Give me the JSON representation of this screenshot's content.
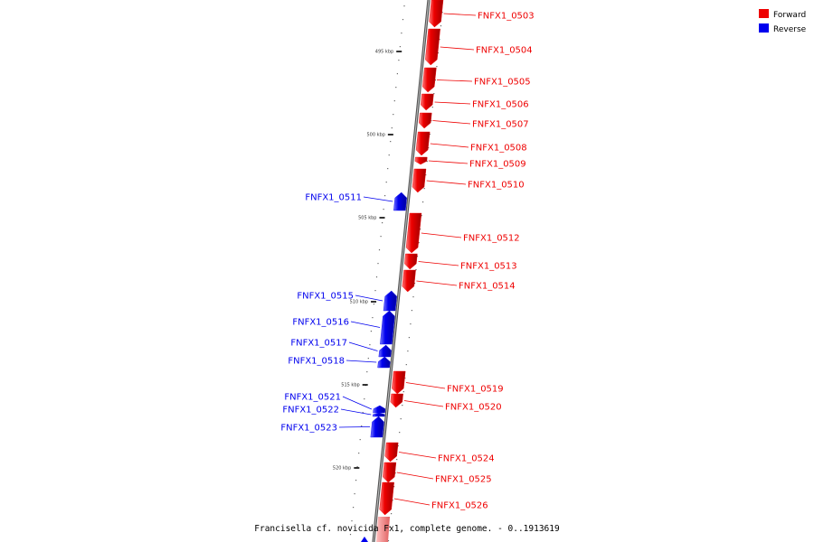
{
  "caption": "Francisella cf. novicida Fx1, complete genome. - 0..1913619",
  "colors": {
    "forward": "#ee0000",
    "reverse": "#0000ee",
    "backbone": "#777777"
  },
  "legend": [
    {
      "key": "forward",
      "label": "Forward",
      "color": "#ee0000"
    },
    {
      "key": "reverse",
      "label": "Reverse",
      "color": "#0000ee"
    }
  ],
  "scale_ticks": [
    {
      "label": "495 kbp"
    },
    {
      "label": "500 kbp"
    },
    {
      "label": "505 kbp"
    },
    {
      "label": "510 kbp"
    },
    {
      "label": "515 kbp"
    },
    {
      "label": "520 kbp"
    }
  ],
  "genes": [
    {
      "name": "FNFX1_0503",
      "strand": "forward"
    },
    {
      "name": "FNFX1_0504",
      "strand": "forward"
    },
    {
      "name": "FNFX1_0505",
      "strand": "forward"
    },
    {
      "name": "FNFX1_0506",
      "strand": "forward"
    },
    {
      "name": "FNFX1_0507",
      "strand": "forward"
    },
    {
      "name": "FNFX1_0508",
      "strand": "forward"
    },
    {
      "name": "FNFX1_0509",
      "strand": "forward"
    },
    {
      "name": "FNFX1_0510",
      "strand": "forward"
    },
    {
      "name": "FNFX1_0511",
      "strand": "reverse"
    },
    {
      "name": "FNFX1_0512",
      "strand": "forward"
    },
    {
      "name": "FNFX1_0513",
      "strand": "forward"
    },
    {
      "name": "FNFX1_0514",
      "strand": "forward"
    },
    {
      "name": "FNFX1_0515",
      "strand": "reverse"
    },
    {
      "name": "FNFX1_0516",
      "strand": "reverse"
    },
    {
      "name": "FNFX1_0517",
      "strand": "reverse"
    },
    {
      "name": "FNFX1_0518",
      "strand": "reverse"
    },
    {
      "name": "FNFX1_0519",
      "strand": "forward"
    },
    {
      "name": "FNFX1_0520",
      "strand": "forward"
    },
    {
      "name": "FNFX1_0521",
      "strand": "reverse"
    },
    {
      "name": "FNFX1_0522",
      "strand": "reverse"
    },
    {
      "name": "FNFX1_0523",
      "strand": "reverse"
    },
    {
      "name": "FNFX1_0524",
      "strand": "forward"
    },
    {
      "name": "FNFX1_0525",
      "strand": "forward"
    },
    {
      "name": "FNFX1_0526",
      "strand": "forward"
    }
  ]
}
